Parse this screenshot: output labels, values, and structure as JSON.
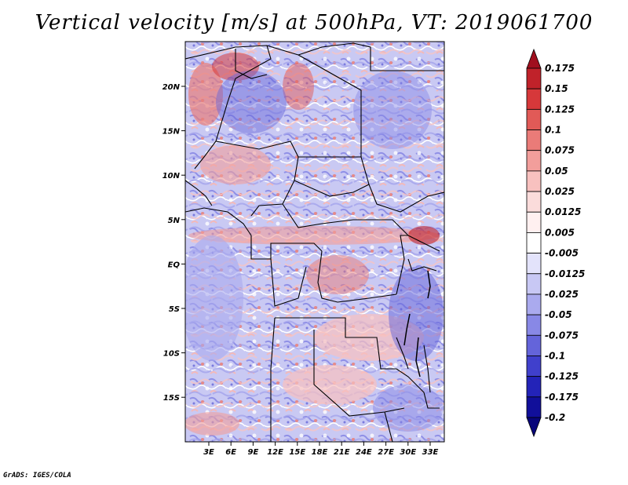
{
  "title": "Vertical velocity [m/s] at 500hPa, VT: 2019061700",
  "credit": "GrADS: IGES/COLA",
  "map": {
    "lat_labels": [
      "20N",
      "15N",
      "10N",
      "5N",
      "EQ",
      "5S",
      "10S",
      "15S"
    ],
    "lon_labels": [
      "3E",
      "6E",
      "9E",
      "12E",
      "15E",
      "18E",
      "21E",
      "24E",
      "27E",
      "30E",
      "33E"
    ]
  },
  "colorbar": {
    "labels": [
      "0.175",
      "0.15",
      "0.125",
      "0.1",
      "0.075",
      "0.05",
      "0.025",
      "0.0125",
      "0.005",
      "-0.005",
      "-0.0125",
      "-0.025",
      "-0.05",
      "-0.075",
      "-0.1",
      "-0.125",
      "-0.175",
      "-0.2"
    ],
    "colors": [
      "#a00f1e",
      "#c0222a",
      "#d6383a",
      "#e15a57",
      "#ea7b78",
      "#f29e9b",
      "#f8c1bf",
      "#fbdcdb",
      "#fff0f0",
      "#ffffff",
      "#e3e3fb",
      "#c8c8f4",
      "#aaaaee",
      "#8888e6",
      "#6464da",
      "#4040cc",
      "#2323b8",
      "#110f9a",
      "#08057a"
    ]
  }
}
